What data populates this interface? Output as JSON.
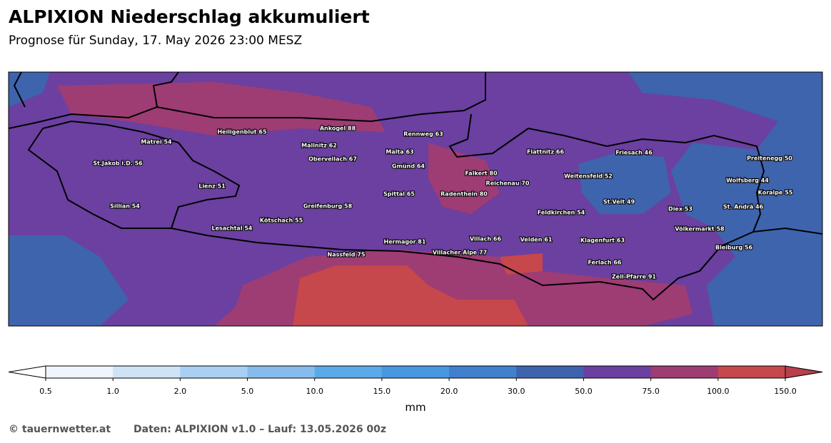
{
  "header": {
    "title": "ALPIXION Niederschlag akkumuliert",
    "subtitle": "Prognose für Sunday, 17. May 2026 23:00 MESZ"
  },
  "map": {
    "places": [
      "Heiligenblut 65",
      "Ankogel 88",
      "Rennweg 63",
      "Matrei 54",
      "Mallnitz 62",
      "Flattnitz 66",
      "Friesach 46",
      "Malta 63",
      "Obervellach 67",
      "Preitenegg 50",
      "St.Jakob i.D. 56",
      "Gmünd 64",
      "Falkert 80",
      "Weitensfeld 52",
      "Wolfsberg 44",
      "Reichenau 70",
      "Lienz 51",
      "Spittal 65",
      "Radenthein 80",
      "Koralpe 55",
      "St.Veit 49",
      "Sillian 54",
      "Greifenburg 58",
      "Diex 53",
      "St. Andrä 46",
      "Feldkirchen 54",
      "Kötschach 55",
      "Lesachtal 54",
      "Völkermarkt 58",
      "Villach 66",
      "Velden 61",
      "Klagenfurt 63",
      "Hermagor 81",
      "Bleiburg 56",
      "Villacher Alpe 77",
      "Nassfeld 75",
      "Ferlach 66",
      "Zell-Pfarre 91"
    ]
  },
  "colorbar": {
    "label": "mm",
    "ticks": [
      0.5,
      {
        "value": 1,
        "label": "1.0"
      },
      {
        "value": 2,
        "label": "2.0"
      },
      {
        "value": 5,
        "label": "5.0"
      },
      {
        "value": 10,
        "label": "10.0"
      },
      {
        "value": 15,
        "label": "15.0"
      },
      {
        "value": 20,
        "label": "20.0"
      },
      {
        "value": 30,
        "label": "30.0"
      },
      {
        "value": 50,
        "label": "50.0"
      },
      {
        "value": 75,
        "label": "75.0"
      },
      {
        "value": 100,
        "label": "100.0"
      },
      {
        "value": 150,
        "label": "150.0"
      }
    ],
    "colors": [
      "#eef5fc",
      "#cfe3f7",
      "#a9d0f2",
      "#86bcec",
      "#5aaae9",
      "#4798e0",
      "#4080cc",
      "#3e64ae",
      "#6b40a0",
      "#9e3c74",
      "#c6474c"
    ],
    "under_color": "#ffffff",
    "over_color": "#b8404c"
  },
  "footer": {
    "copyright": "© tauernwetter.at",
    "source": "Daten: ALPIXION v1.0 – Lauf: 13.05.2026 00z"
  }
}
